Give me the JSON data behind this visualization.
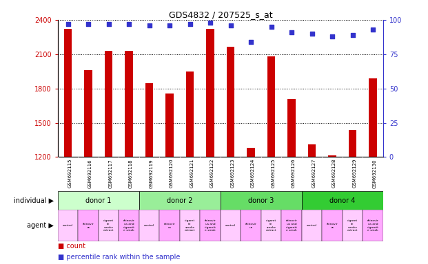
{
  "title": "GDS4832 / 207525_s_at",
  "samples": [
    "GSM692115",
    "GSM692116",
    "GSM692117",
    "GSM692118",
    "GSM692119",
    "GSM692120",
    "GSM692121",
    "GSM692122",
    "GSM692123",
    "GSM692124",
    "GSM692125",
    "GSM692126",
    "GSM692127",
    "GSM692128",
    "GSM692129",
    "GSM692130"
  ],
  "counts": [
    2320,
    1960,
    2130,
    2130,
    1845,
    1755,
    1950,
    2320,
    2165,
    1280,
    2080,
    1710,
    1310,
    1215,
    1440,
    1890
  ],
  "percentile_ranks": [
    97,
    97,
    97,
    97,
    96,
    96,
    97,
    98,
    96,
    84,
    95,
    91,
    90,
    88,
    89,
    93
  ],
  "ylim_left": [
    1200,
    2400
  ],
  "ylim_right": [
    0,
    100
  ],
  "yticks_left": [
    1200,
    1500,
    1800,
    2100,
    2400
  ],
  "yticks_right": [
    0,
    25,
    50,
    75,
    100
  ],
  "bar_color": "#cc0000",
  "dot_color": "#3333cc",
  "bar_width": 0.4,
  "donors": [
    {
      "label": "donor 1",
      "start": 0,
      "end": 4,
      "color": "#ccffcc"
    },
    {
      "label": "donor 2",
      "start": 4,
      "end": 8,
      "color": "#99ee99"
    },
    {
      "label": "donor 3",
      "start": 8,
      "end": 12,
      "color": "#66dd66"
    },
    {
      "label": "donor 4",
      "start": 12,
      "end": 16,
      "color": "#33cc33"
    }
  ],
  "agent_labels": [
    "control",
    "rhinovir\nus",
    "cigaret\nte\nsmoke\nextract",
    "rhinovir\nus and\ncigarett\ne smok"
  ],
  "agent_colors": [
    "#ffccff",
    "#ffaaff",
    "#ffccff",
    "#ffaaff"
  ],
  "bg_color": "#ffffff",
  "tick_color_left": "#cc0000",
  "tick_color_right": "#3333cc",
  "xlabel_bg": "#dddddd"
}
